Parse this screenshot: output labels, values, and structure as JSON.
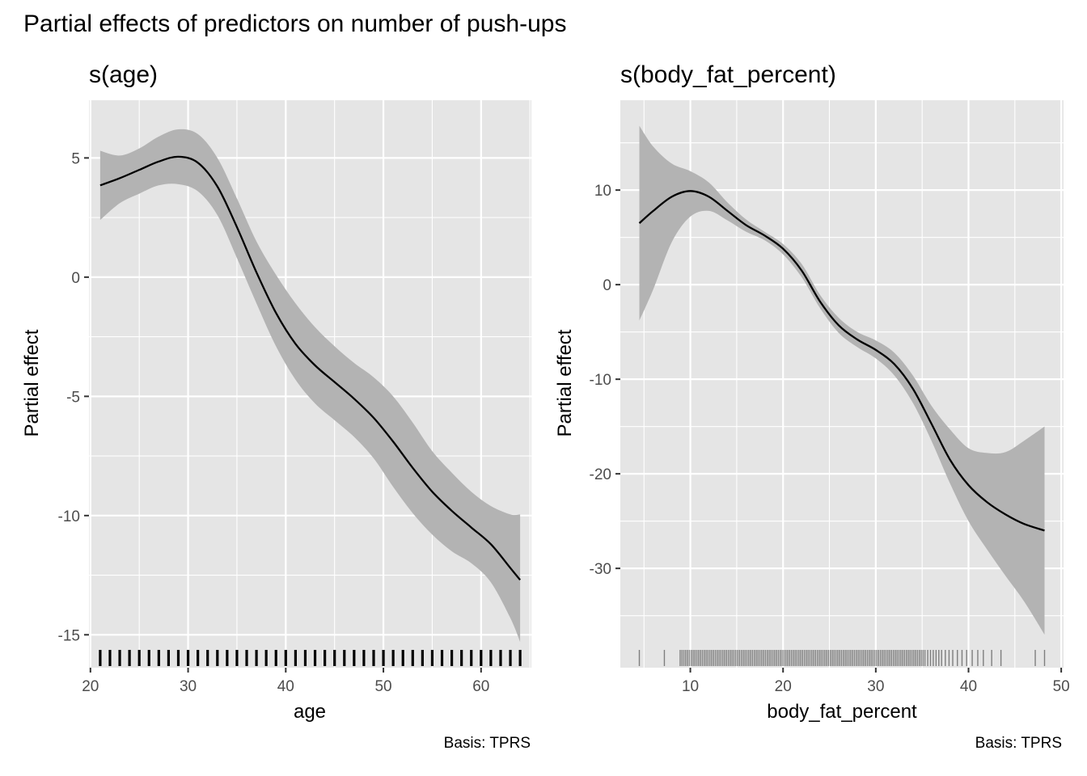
{
  "figure_title": "Partial effects of predictors on number of push-ups",
  "colors": {
    "panel_bg": "#e5e5e5",
    "grid": "#ffffff",
    "ribbon": "#b3b3b3",
    "line": "#000000",
    "tick_text": "#4d4d4d"
  },
  "chart_data": [
    {
      "type": "line",
      "title": "s(age)",
      "xlabel": "age",
      "ylabel": "Partial effect",
      "caption": "Basis: TPRS",
      "xlim": [
        19.85,
        65.15
      ],
      "ylim": [
        -16.38,
        7.42
      ],
      "x_ticks": [
        20,
        30,
        40,
        50,
        60
      ],
      "x_tick_labels": [
        "20",
        "30",
        "40",
        "50",
        "60"
      ],
      "y_ticks": [
        5,
        0,
        -5,
        -10,
        -15
      ],
      "y_tick_labels": [
        "5",
        "0",
        "-5",
        "-10",
        "-15"
      ],
      "grid": true,
      "series": [
        {
          "x": [
            21,
            23,
            25,
            27,
            29,
            31,
            33,
            35,
            37,
            39,
            41,
            43,
            45,
            47,
            49,
            51,
            53,
            55,
            57,
            59,
            61,
            63,
            64
          ],
          "fit": [
            3.85,
            4.15,
            4.5,
            4.85,
            5.05,
            4.8,
            3.8,
            2.1,
            0.2,
            -1.5,
            -2.8,
            -3.7,
            -4.4,
            -5.1,
            -5.9,
            -6.9,
            -8.0,
            -9.0,
            -9.8,
            -10.5,
            -11.2,
            -12.2,
            -12.7
          ],
          "upper": [
            5.3,
            5.1,
            5.4,
            5.9,
            6.2,
            6.0,
            5.0,
            3.3,
            1.5,
            0.1,
            -1.1,
            -2.1,
            -2.9,
            -3.6,
            -4.2,
            -5.0,
            -6.1,
            -7.3,
            -8.2,
            -9.0,
            -9.6,
            -9.95,
            -9.95
          ],
          "lower": [
            2.4,
            3.1,
            3.5,
            3.85,
            3.9,
            3.6,
            2.6,
            0.8,
            -1.1,
            -2.9,
            -4.3,
            -5.3,
            -6.0,
            -6.7,
            -7.6,
            -8.8,
            -9.9,
            -10.8,
            -11.5,
            -12.0,
            -12.8,
            -14.3,
            -15.3
          ]
        }
      ],
      "rug": {
        "values": [
          21,
          22,
          23,
          24,
          25,
          26,
          27,
          28,
          29,
          30,
          31,
          32,
          33,
          34,
          35,
          36,
          37,
          38,
          39,
          40,
          41,
          42,
          43,
          44,
          45,
          46,
          47,
          48,
          49,
          50,
          51,
          52,
          53,
          54,
          55,
          56,
          57,
          58,
          59,
          60,
          61,
          62,
          63,
          64
        ]
      }
    },
    {
      "type": "line",
      "title": "s(body_fat_percent)",
      "xlabel": "body_fat_percent",
      "ylabel": "Partial effect",
      "caption": "Basis: TPRS",
      "xlim": [
        2.45,
        50.25
      ],
      "ylim": [
        -40.5,
        19.5
      ],
      "x_ticks": [
        10,
        20,
        30,
        40,
        50
      ],
      "x_tick_labels": [
        "10",
        "20",
        "30",
        "40",
        "50"
      ],
      "y_ticks": [
        10,
        0,
        -10,
        -20,
        -30
      ],
      "y_tick_labels": [
        "10",
        "0",
        "-10",
        "-20",
        "-30"
      ],
      "grid": true,
      "series": [
        {
          "x": [
            4.5,
            6,
            8,
            10,
            12,
            14,
            16,
            18,
            20,
            22,
            24,
            26,
            28,
            30,
            32,
            34,
            36,
            38,
            40,
            42,
            44,
            46,
            48.2
          ],
          "fit": [
            6.5,
            7.8,
            9.3,
            9.9,
            9.3,
            7.8,
            6.3,
            5.2,
            3.8,
            1.5,
            -1.8,
            -4.3,
            -5.8,
            -6.9,
            -8.4,
            -11.0,
            -14.7,
            -18.5,
            -21.2,
            -23.0,
            -24.3,
            -25.3,
            -26.0
          ],
          "upper": [
            16.8,
            14.6,
            12.8,
            12.0,
            10.8,
            8.7,
            6.9,
            5.6,
            4.3,
            2.2,
            -1.1,
            -3.5,
            -5.0,
            -5.9,
            -7.2,
            -9.6,
            -12.8,
            -15.3,
            -17.3,
            -17.8,
            -17.7,
            -16.5,
            -15.0
          ],
          "lower": [
            -3.8,
            -0.5,
            4.5,
            7.2,
            7.8,
            6.8,
            5.6,
            4.7,
            3.2,
            0.8,
            -2.5,
            -5.1,
            -6.6,
            -7.8,
            -9.6,
            -12.5,
            -16.5,
            -21.0,
            -25.0,
            -28.0,
            -30.8,
            -33.5,
            -37.0
          ]
        }
      ],
      "rug": {
        "values": [
          4.5,
          7.2,
          8.9,
          9.1,
          9.3,
          9.5,
          9.7,
          9.9,
          10.1,
          10.3,
          10.5,
          10.7,
          10.9,
          11.1,
          11.3,
          11.5,
          11.7,
          11.9,
          12.1,
          12.3,
          12.5,
          12.7,
          12.9,
          13.1,
          13.3,
          13.5,
          13.7,
          13.9,
          14.1,
          14.3,
          14.5,
          14.7,
          14.9,
          15.1,
          15.3,
          15.5,
          15.7,
          15.9,
          16.1,
          16.3,
          16.5,
          16.7,
          16.9,
          17.1,
          17.3,
          17.5,
          17.7,
          17.9,
          18.1,
          18.3,
          18.5,
          18.7,
          18.9,
          19.1,
          19.3,
          19.5,
          19.7,
          19.9,
          20.1,
          20.3,
          20.5,
          20.7,
          20.9,
          21.1,
          21.3,
          21.5,
          21.7,
          21.9,
          22.1,
          22.3,
          22.5,
          22.7,
          22.9,
          23.1,
          23.3,
          23.5,
          23.7,
          23.9,
          24.1,
          24.3,
          24.5,
          24.7,
          24.9,
          25.1,
          25.3,
          25.5,
          25.7,
          25.9,
          26.1,
          26.3,
          26.5,
          26.7,
          26.9,
          27.1,
          27.3,
          27.5,
          27.7,
          27.9,
          28.1,
          28.3,
          28.5,
          28.7,
          28.9,
          29.1,
          29.3,
          29.5,
          29.7,
          29.9,
          30.1,
          30.3,
          30.5,
          30.7,
          30.9,
          31.1,
          31.3,
          31.5,
          31.7,
          31.9,
          32.1,
          32.3,
          32.5,
          32.7,
          32.9,
          33.1,
          33.3,
          33.5,
          33.7,
          33.9,
          34.1,
          34.3,
          34.5,
          34.7,
          34.9,
          35.1,
          35.3,
          35.6,
          35.9,
          36.2,
          36.5,
          36.8,
          37.1,
          37.5,
          37.9,
          38.3,
          38.8,
          39.3,
          39.8,
          40.4,
          41.0,
          41.6,
          42.5,
          43.5,
          47.2,
          48.2
        ]
      }
    }
  ]
}
